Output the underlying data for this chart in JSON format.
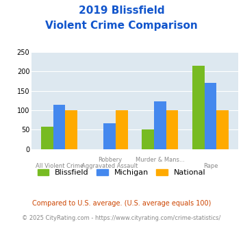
{
  "title_line1": "2019 Blissfield",
  "title_line2": "Violent Crime Comparison",
  "x_labels_top": [
    "",
    "Robbery",
    "Murder & Mans...",
    ""
  ],
  "x_labels_bottom": [
    "All Violent Crime",
    "Aggravated Assault",
    "",
    "Rape"
  ],
  "colors": {
    "blissfield": "#77bb22",
    "michigan": "#4488ee",
    "national": "#ffaa00"
  },
  "ylim": [
    0,
    250
  ],
  "yticks": [
    0,
    50,
    100,
    150,
    200,
    250
  ],
  "title_color": "#1155cc",
  "axis_bg": "#dde8f0",
  "fig_bg": "#ffffff",
  "footnote1": "Compared to U.S. average. (U.S. average equals 100)",
  "footnote2": "© 2025 CityRating.com - https://www.cityrating.com/crime-statistics/",
  "footnote1_color": "#cc4400",
  "footnote2_color": "#888888",
  "legend_labels": [
    "Blissfield",
    "Michigan",
    "National"
  ],
  "group_data": [
    {
      "blissfield": 58,
      "michigan": 115,
      "national": 100
    },
    {
      "blissfield": 0,
      "michigan": 66,
      "national": 100
    },
    {
      "blissfield": 50,
      "michigan": 123,
      "national": 100
    },
    {
      "blissfield": 215,
      "michigan": 170,
      "national": 100
    }
  ]
}
